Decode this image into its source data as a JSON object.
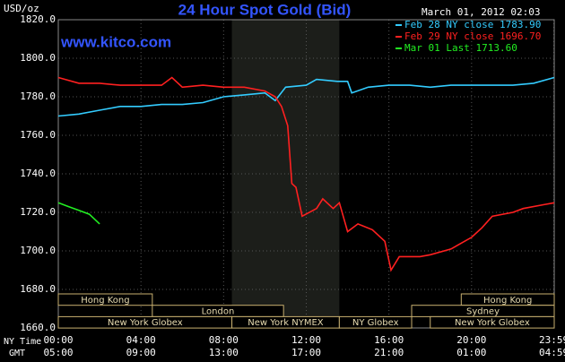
{
  "chart_data": {
    "type": "line",
    "title": "24 Hour Spot Gold (Bid)",
    "watermark": "www.kitco.com",
    "timestamp": "March 01, 2012 02:03",
    "y_label": "USD/oz",
    "x_row_labels": [
      "NY Time",
      "GMT"
    ],
    "xlim": [
      0,
      24
    ],
    "ylim": [
      1660,
      1820
    ],
    "yticks": [
      {
        "value": 1660,
        "label": "1660.0"
      },
      {
        "value": 1680,
        "label": "1680.0"
      },
      {
        "value": 1700,
        "label": "1700.0"
      },
      {
        "value": 1720,
        "label": "1720.0"
      },
      {
        "value": 1740,
        "label": "1740.0"
      },
      {
        "value": 1760,
        "label": "1760.0"
      },
      {
        "value": 1780,
        "label": "1780.0"
      },
      {
        "value": 1800,
        "label": "1800.0"
      },
      {
        "value": 1820,
        "label": "1820.0"
      }
    ],
    "xticks": [
      {
        "value": 0,
        "label": "00:00"
      },
      {
        "value": 4,
        "label": "04:00"
      },
      {
        "value": 8,
        "label": "08:00"
      },
      {
        "value": 12,
        "label": "12:00"
      },
      {
        "value": 16,
        "label": "16:00"
      },
      {
        "value": 20,
        "label": "20:00"
      },
      {
        "value": 23.98,
        "label": "23:59"
      }
    ],
    "gmt_tick_labels": [
      "05:00",
      "09:00",
      "13:00",
      "17:00",
      "21:00",
      "01:00",
      "04:59"
    ],
    "highlight_range": [
      8.4,
      13.6
    ],
    "sessions": [
      {
        "label": "Hong Kong",
        "row": 0,
        "start": 0,
        "end": 4.55
      },
      {
        "label": "Hong Kong",
        "row": 0,
        "start": 19.5,
        "end": 24
      },
      {
        "label": "London",
        "row": 1,
        "start": 4.55,
        "end": 10.9
      },
      {
        "label": "Sydney",
        "row": 1,
        "start": 17.1,
        "end": 24
      },
      {
        "label": "New York Globex",
        "row": 2,
        "start": 0,
        "end": 8.4
      },
      {
        "label": "New York NYMEX",
        "row": 2,
        "start": 8.4,
        "end": 13.6
      },
      {
        "label": "NY Globex",
        "row": 2,
        "start": 13.6,
        "end": 17.1
      },
      {
        "label": "New York Globex",
        "row": 2,
        "start": 18,
        "end": 24
      }
    ],
    "grid": true,
    "series": [
      {
        "name": "Feb 28 NY close 1783.90",
        "color": "#33ccff",
        "x": [
          0,
          1,
          2,
          3,
          4,
          5,
          6,
          7,
          8,
          9,
          10,
          10.5,
          11,
          12,
          12.5,
          13.5,
          14,
          14.2,
          15,
          16,
          17,
          18,
          19,
          20,
          21,
          22,
          23,
          24
        ],
        "values": [
          1770,
          1771,
          1773,
          1775,
          1775,
          1776,
          1776,
          1777,
          1780,
          1781,
          1782,
          1778,
          1785,
          1786,
          1789,
          1788,
          1788,
          1782,
          1785,
          1786,
          1786,
          1785,
          1786,
          1786,
          1786,
          1786,
          1787,
          1790
        ]
      },
      {
        "name": "Feb 29 NY close 1696.70",
        "color": "#ff2020",
        "x": [
          0,
          1,
          2,
          3,
          4,
          5,
          5.5,
          6,
          7,
          8,
          9,
          10,
          10.5,
          10.8,
          11.1,
          11.3,
          11.5,
          11.8,
          12.5,
          12.8,
          13.3,
          13.6,
          14,
          14.5,
          15.2,
          15.8,
          16.1,
          16.5,
          17.5,
          18,
          19,
          20,
          20.5,
          21,
          22,
          22.5,
          23.5,
          24
        ],
        "values": [
          1790,
          1787,
          1787,
          1786,
          1786,
          1786,
          1790,
          1785,
          1786,
          1785,
          1785,
          1783,
          1780,
          1775,
          1765,
          1735,
          1733,
          1718,
          1722,
          1727,
          1722,
          1725,
          1710,
          1714,
          1711,
          1705,
          1690,
          1697,
          1697,
          1698,
          1701,
          1707,
          1712,
          1718,
          1720,
          1722,
          1724,
          1725
        ]
      },
      {
        "name": "Mar 01 Last 1713.60",
        "color": "#22ee22",
        "x": [
          0,
          0.5,
          1,
          1.5,
          2
        ],
        "values": [
          1725,
          1723,
          1721,
          1719,
          1714
        ]
      }
    ]
  }
}
